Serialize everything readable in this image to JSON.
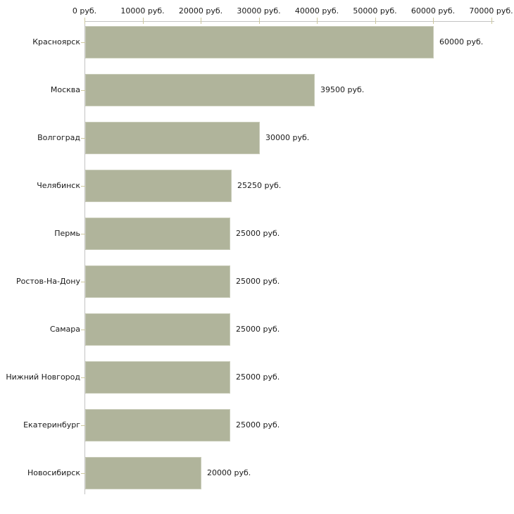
{
  "chart_data": {
    "type": "bar",
    "orientation": "horizontal",
    "title": "",
    "xlabel": "",
    "ylabel": "",
    "unit": "руб.",
    "categories": [
      "Красноярск",
      "Москва",
      "Волгоград",
      "Челябинск",
      "Пермь",
      "Ростов-На-Дону",
      "Самара",
      "Нижний Новгород",
      "Екатеринбург",
      "Новосибирск"
    ],
    "values": [
      60000,
      39500,
      30000,
      25250,
      25000,
      25000,
      25000,
      25000,
      25000,
      20000
    ],
    "value_labels": [
      "60000 руб.",
      "39500 руб.",
      "30000 руб.",
      "25250 руб.",
      "25000 руб.",
      "25000 руб.",
      "25000 руб.",
      "25000 руб.",
      "25000 руб.",
      "20000 руб."
    ],
    "x_axis": {
      "position": "top",
      "min": 0,
      "max": 70000,
      "ticks": [
        0,
        10000,
        20000,
        30000,
        40000,
        50000,
        60000,
        70000
      ],
      "tick_labels": [
        "0 руб.",
        "10000 руб.",
        "20000 руб.",
        "30000 руб.",
        "40000 руб.",
        "50000 руб.",
        "60000 руб.",
        "70000 руб."
      ]
    },
    "legend": "none",
    "grid": "off",
    "colors": {
      "bar_fill": "#b0b49b",
      "bar_border": "#c9ccb9",
      "axis_line": "#c3c3c3",
      "tick_mark": "#cdc89e",
      "text": "#1a1a1a",
      "background": "#ffffff"
    }
  }
}
